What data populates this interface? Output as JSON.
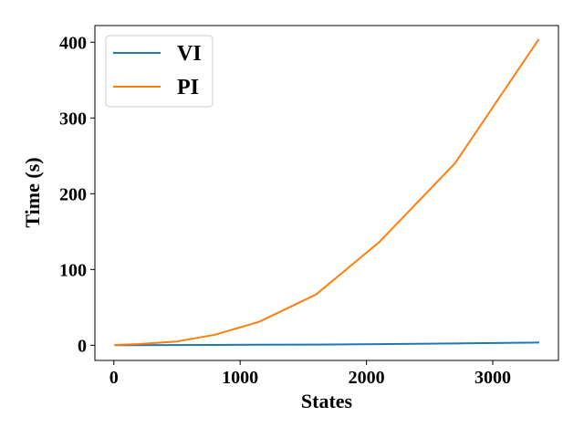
{
  "chart_data": {
    "type": "line",
    "title": "",
    "xlabel": "States",
    "ylabel": "Time (s)",
    "xlim": [
      -150,
      3520
    ],
    "ylim": [
      -20,
      422
    ],
    "xticks": [
      0,
      1000,
      2000,
      3000
    ],
    "yticks": [
      0,
      100,
      200,
      300,
      400
    ],
    "grid": false,
    "legend_position": "top-left",
    "series": [
      {
        "name": "VI",
        "color": "#1f77b4",
        "x": [
          12,
          200,
          500,
          800,
          1150,
          1600,
          2100,
          2700,
          3360
        ],
        "y": [
          0.1,
          0.2,
          0.3,
          0.5,
          0.7,
          1.0,
          1.6,
          2.4,
          3.6
        ]
      },
      {
        "name": "PI",
        "color": "#ff7f0e",
        "x": [
          12,
          200,
          500,
          800,
          1150,
          1600,
          2100,
          2700,
          3360
        ],
        "y": [
          0.5,
          1.7,
          5.0,
          14.0,
          31.0,
          67.0,
          136.0,
          240.0,
          403.0
        ]
      }
    ]
  }
}
